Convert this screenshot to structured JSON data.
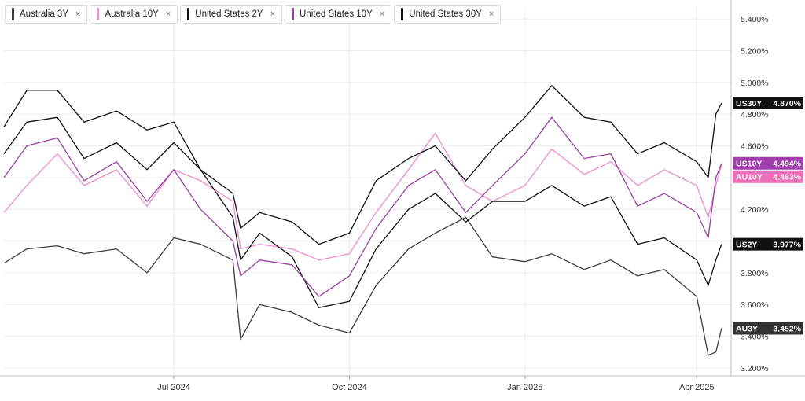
{
  "legend": [
    {
      "label": "Australia 3Y",
      "color": "#3d3d3d",
      "close": "×"
    },
    {
      "label": "Australia 10Y",
      "color": "#f08bc7",
      "close": "×"
    },
    {
      "label": "United States 2Y",
      "color": "#111111",
      "close": "×"
    },
    {
      "label": "United States 10Y",
      "color": "#9b3fa6",
      "close": "×"
    },
    {
      "label": "United States 30Y",
      "color": "#111111",
      "close": "×"
    }
  ],
  "chart_data": {
    "type": "line",
    "y_unit": "%",
    "ylim": [
      3.15,
      5.48
    ],
    "xlim": [
      "2024-04-03",
      "2025-04-19"
    ],
    "x_ticks": [
      {
        "date": "2024-07-01",
        "label": "Jul 2024"
      },
      {
        "date": "2024-10-01",
        "label": "Oct 2024"
      },
      {
        "date": "2025-01-01",
        "label": "Jan 2025"
      },
      {
        "date": "2025-04-01",
        "label": "Apr 2025"
      }
    ],
    "y_ticks": [
      "3.200%",
      "3.400%",
      "3.600%",
      "3.800%",
      "4.000%",
      "4.200%",
      "4.400%",
      "4.600%",
      "4.800%",
      "5.000%",
      "5.200%",
      "5.400%"
    ],
    "grid": true,
    "series": [
      {
        "name": "Australia 3Y",
        "tag": "AU3Y",
        "last_label": "3.452%",
        "color": "#3d3d3d",
        "tag_bg": "#333333",
        "points": [
          [
            "2024-04-03",
            3.86
          ],
          [
            "2024-04-15",
            3.95
          ],
          [
            "2024-05-01",
            3.97
          ],
          [
            "2024-05-15",
            3.92
          ],
          [
            "2024-06-01",
            3.95
          ],
          [
            "2024-06-17",
            3.8
          ],
          [
            "2024-07-01",
            4.02
          ],
          [
            "2024-07-15",
            3.98
          ],
          [
            "2024-08-01",
            3.88
          ],
          [
            "2024-08-05",
            3.38
          ],
          [
            "2024-08-15",
            3.6
          ],
          [
            "2024-09-01",
            3.55
          ],
          [
            "2024-09-15",
            3.47
          ],
          [
            "2024-10-01",
            3.42
          ],
          [
            "2024-10-15",
            3.72
          ],
          [
            "2024-11-01",
            3.95
          ],
          [
            "2024-11-15",
            4.05
          ],
          [
            "2024-12-01",
            4.15
          ],
          [
            "2024-12-15",
            3.9
          ],
          [
            "2025-01-01",
            3.87
          ],
          [
            "2025-01-15",
            3.92
          ],
          [
            "2025-02-01",
            3.82
          ],
          [
            "2025-02-15",
            3.88
          ],
          [
            "2025-03-01",
            3.78
          ],
          [
            "2025-03-15",
            3.82
          ],
          [
            "2025-04-01",
            3.65
          ],
          [
            "2025-04-07",
            3.28
          ],
          [
            "2025-04-11",
            3.3
          ],
          [
            "2025-04-14",
            3.45
          ]
        ]
      },
      {
        "name": "Australia 10Y",
        "tag": "AU10Y",
        "last_label": "4.483%",
        "color": "#f08bc7",
        "tag_bg": "#ec6fba",
        "points": [
          [
            "2024-04-03",
            4.18
          ],
          [
            "2024-04-15",
            4.35
          ],
          [
            "2024-05-01",
            4.55
          ],
          [
            "2024-05-15",
            4.35
          ],
          [
            "2024-06-01",
            4.45
          ],
          [
            "2024-06-17",
            4.22
          ],
          [
            "2024-07-01",
            4.45
          ],
          [
            "2024-07-15",
            4.38
          ],
          [
            "2024-08-01",
            4.25
          ],
          [
            "2024-08-05",
            3.95
          ],
          [
            "2024-08-15",
            3.98
          ],
          [
            "2024-09-01",
            3.95
          ],
          [
            "2024-09-15",
            3.88
          ],
          [
            "2024-10-01",
            3.92
          ],
          [
            "2024-10-15",
            4.18
          ],
          [
            "2024-11-01",
            4.45
          ],
          [
            "2024-11-15",
            4.68
          ],
          [
            "2024-12-01",
            4.35
          ],
          [
            "2024-12-15",
            4.25
          ],
          [
            "2025-01-01",
            4.35
          ],
          [
            "2025-01-15",
            4.58
          ],
          [
            "2025-02-01",
            4.42
          ],
          [
            "2025-02-15",
            4.5
          ],
          [
            "2025-03-01",
            4.35
          ],
          [
            "2025-03-15",
            4.45
          ],
          [
            "2025-04-01",
            4.35
          ],
          [
            "2025-04-07",
            4.15
          ],
          [
            "2025-04-11",
            4.35
          ],
          [
            "2025-04-14",
            4.48
          ]
        ]
      },
      {
        "name": "United States 2Y",
        "tag": "US2Y",
        "last_label": "3.977%",
        "color": "#111111",
        "tag_bg": "#111111",
        "points": [
          [
            "2024-04-03",
            4.72
          ],
          [
            "2024-04-15",
            4.95
          ],
          [
            "2024-05-01",
            4.95
          ],
          [
            "2024-05-15",
            4.75
          ],
          [
            "2024-06-01",
            4.82
          ],
          [
            "2024-06-17",
            4.7
          ],
          [
            "2024-07-01",
            4.75
          ],
          [
            "2024-07-15",
            4.45
          ],
          [
            "2024-08-01",
            4.15
          ],
          [
            "2024-08-05",
            3.88
          ],
          [
            "2024-08-15",
            4.05
          ],
          [
            "2024-09-01",
            3.9
          ],
          [
            "2024-09-15",
            3.58
          ],
          [
            "2024-10-01",
            3.62
          ],
          [
            "2024-10-15",
            3.95
          ],
          [
            "2024-11-01",
            4.2
          ],
          [
            "2024-11-15",
            4.3
          ],
          [
            "2024-12-01",
            4.12
          ],
          [
            "2024-12-15",
            4.25
          ],
          [
            "2025-01-01",
            4.25
          ],
          [
            "2025-01-15",
            4.35
          ],
          [
            "2025-02-01",
            4.22
          ],
          [
            "2025-02-15",
            4.28
          ],
          [
            "2025-03-01",
            3.98
          ],
          [
            "2025-03-15",
            4.02
          ],
          [
            "2025-04-01",
            3.88
          ],
          [
            "2025-04-07",
            3.72
          ],
          [
            "2025-04-11",
            3.88
          ],
          [
            "2025-04-14",
            3.98
          ]
        ]
      },
      {
        "name": "United States 10Y",
        "tag": "US10Y",
        "last_label": "4.494%",
        "color": "#9b3fa6",
        "tag_bg": "#a23fae",
        "points": [
          [
            "2024-04-03",
            4.4
          ],
          [
            "2024-04-15",
            4.6
          ],
          [
            "2024-05-01",
            4.65
          ],
          [
            "2024-05-15",
            4.38
          ],
          [
            "2024-06-01",
            4.5
          ],
          [
            "2024-06-17",
            4.25
          ],
          [
            "2024-07-01",
            4.45
          ],
          [
            "2024-07-15",
            4.2
          ],
          [
            "2024-08-01",
            4.0
          ],
          [
            "2024-08-05",
            3.78
          ],
          [
            "2024-08-15",
            3.88
          ],
          [
            "2024-09-01",
            3.85
          ],
          [
            "2024-09-15",
            3.65
          ],
          [
            "2024-10-01",
            3.78
          ],
          [
            "2024-10-15",
            4.08
          ],
          [
            "2024-11-01",
            4.35
          ],
          [
            "2024-11-15",
            4.45
          ],
          [
            "2024-12-01",
            4.18
          ],
          [
            "2024-12-15",
            4.35
          ],
          [
            "2025-01-01",
            4.55
          ],
          [
            "2025-01-15",
            4.78
          ],
          [
            "2025-02-01",
            4.52
          ],
          [
            "2025-02-15",
            4.55
          ],
          [
            "2025-03-01",
            4.22
          ],
          [
            "2025-03-15",
            4.3
          ],
          [
            "2025-04-01",
            4.18
          ],
          [
            "2025-04-07",
            4.02
          ],
          [
            "2025-04-11",
            4.4
          ],
          [
            "2025-04-14",
            4.49
          ]
        ]
      },
      {
        "name": "United States 30Y",
        "tag": "US30Y",
        "last_label": "4.870%",
        "color": "#111111",
        "tag_bg": "#111111",
        "points": [
          [
            "2024-04-03",
            4.55
          ],
          [
            "2024-04-15",
            4.75
          ],
          [
            "2024-05-01",
            4.78
          ],
          [
            "2024-05-15",
            4.52
          ],
          [
            "2024-06-01",
            4.62
          ],
          [
            "2024-06-17",
            4.45
          ],
          [
            "2024-07-01",
            4.62
          ],
          [
            "2024-07-15",
            4.45
          ],
          [
            "2024-08-01",
            4.3
          ],
          [
            "2024-08-05",
            4.08
          ],
          [
            "2024-08-15",
            4.18
          ],
          [
            "2024-09-01",
            4.12
          ],
          [
            "2024-09-15",
            3.98
          ],
          [
            "2024-10-01",
            4.05
          ],
          [
            "2024-10-15",
            4.38
          ],
          [
            "2024-11-01",
            4.52
          ],
          [
            "2024-11-15",
            4.6
          ],
          [
            "2024-12-01",
            4.38
          ],
          [
            "2024-12-15",
            4.58
          ],
          [
            "2025-01-01",
            4.78
          ],
          [
            "2025-01-15",
            4.98
          ],
          [
            "2025-02-01",
            4.78
          ],
          [
            "2025-02-15",
            4.75
          ],
          [
            "2025-03-01",
            4.55
          ],
          [
            "2025-03-15",
            4.62
          ],
          [
            "2025-04-01",
            4.5
          ],
          [
            "2025-04-07",
            4.4
          ],
          [
            "2025-04-11",
            4.8
          ],
          [
            "2025-04-14",
            4.87
          ]
        ]
      }
    ]
  }
}
